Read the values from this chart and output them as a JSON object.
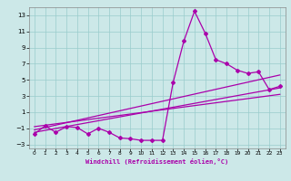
{
  "xlabel": "Windchill (Refroidissement éolien,°C)",
  "bg_color": "#cce8e8",
  "grid_color": "#99cccc",
  "line_color": "#aa00aa",
  "xlim": [
    -0.5,
    23.5
  ],
  "ylim": [
    -3.5,
    14.0
  ],
  "yticks": [
    -3,
    -1,
    1,
    3,
    5,
    7,
    9,
    11,
    13
  ],
  "xticks": [
    0,
    1,
    2,
    3,
    4,
    5,
    6,
    7,
    8,
    9,
    10,
    11,
    12,
    13,
    14,
    15,
    16,
    17,
    18,
    19,
    20,
    21,
    22,
    23
  ],
  "series": [
    {
      "x": [
        0,
        1,
        2,
        3,
        4,
        5,
        6,
        7,
        8,
        9,
        10,
        11,
        12,
        13,
        14,
        15,
        16,
        17,
        18,
        19,
        20,
        21,
        22,
        23
      ],
      "y": [
        -1.7,
        -0.7,
        -1.5,
        -0.8,
        -0.9,
        -1.7,
        -1.0,
        -1.5,
        -2.2,
        -2.3,
        -2.5,
        -2.5,
        -2.5,
        4.7,
        9.8,
        13.5,
        10.8,
        7.5,
        7.0,
        6.2,
        5.8,
        6.0,
        3.8,
        4.2
      ],
      "marker": "D",
      "markersize": 2.0,
      "linewidth": 0.9,
      "has_marker": true
    },
    {
      "x": [
        0,
        23
      ],
      "y": [
        -1.5,
        4.0
      ],
      "marker": null,
      "markersize": 0,
      "linewidth": 0.9,
      "has_marker": false
    },
    {
      "x": [
        0,
        23
      ],
      "y": [
        -1.2,
        5.6
      ],
      "marker": null,
      "markersize": 0,
      "linewidth": 0.9,
      "has_marker": false
    },
    {
      "x": [
        0,
        23
      ],
      "y": [
        -0.8,
        3.2
      ],
      "marker": null,
      "markersize": 0,
      "linewidth": 0.9,
      "has_marker": false
    }
  ]
}
